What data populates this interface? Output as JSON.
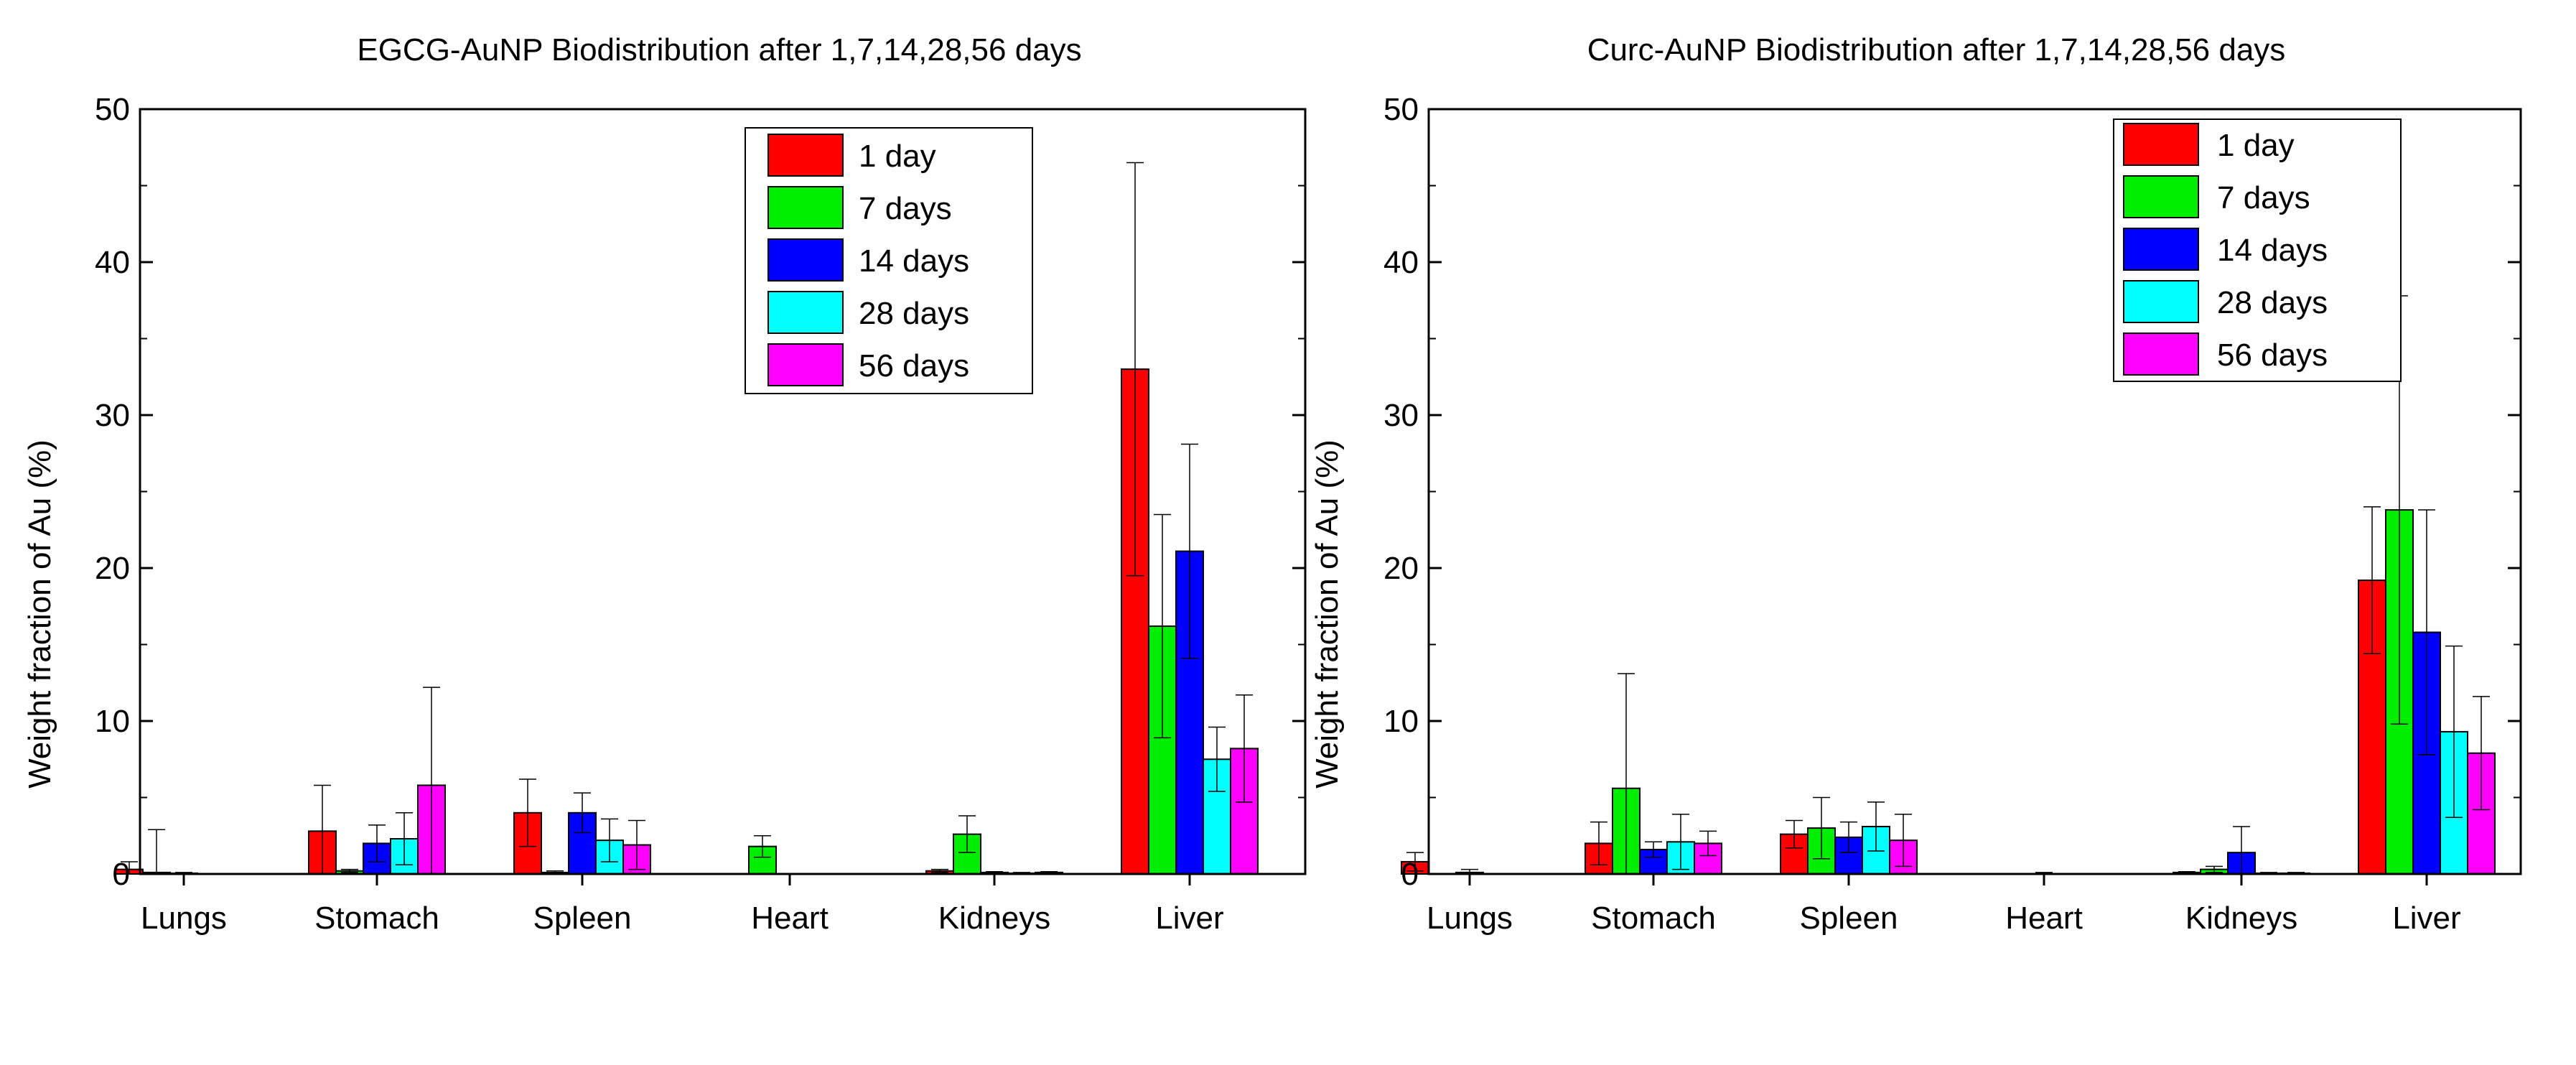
{
  "chart_data": [
    {
      "type": "bar",
      "title": "EGCG-AuNP Biodistribution after 1,7,14,28,56 days",
      "xlabel": "",
      "ylabel": "Weight fraction of Au (%)",
      "ylim": [
        0,
        50
      ],
      "yticks": [
        0,
        10,
        20,
        30,
        40,
        50
      ],
      "categories": [
        "Lungs",
        "Stomach",
        "Spleen",
        "Heart",
        "Kidneys",
        "Liver"
      ],
      "legend_position": "top-right",
      "series": [
        {
          "name": "1 day",
          "color": "#ff0000",
          "values": [
            0.3,
            2.8,
            4.0,
            0.0,
            0.2,
            33.0
          ],
          "errors": [
            0.5,
            3.0,
            2.2,
            0.0,
            0.1,
            13.5
          ]
        },
        {
          "name": "7 days",
          "color": "#00ee00",
          "values": [
            0.1,
            0.2,
            0.1,
            1.8,
            2.6,
            16.2
          ],
          "errors": [
            2.8,
            0.1,
            0.1,
            0.7,
            1.2,
            7.3
          ]
        },
        {
          "name": "14 days",
          "color": "#0000ff",
          "values": [
            0.05,
            2.0,
            4.0,
            0.0,
            0.1,
            21.1
          ],
          "errors": [
            0.05,
            1.2,
            1.3,
            0.0,
            0.05,
            7.0
          ]
        },
        {
          "name": "28 days",
          "color": "#00ffff",
          "values": [
            0.0,
            2.3,
            2.2,
            0.0,
            0.05,
            7.5
          ],
          "errors": [
            0.0,
            1.7,
            1.4,
            0.0,
            0.05,
            2.1
          ]
        },
        {
          "name": "56 days",
          "color": "#ff00ff",
          "values": [
            0.0,
            5.8,
            1.9,
            0.0,
            0.1,
            8.2
          ],
          "errors": [
            0.0,
            6.4,
            1.6,
            0.0,
            0.05,
            3.5
          ]
        }
      ]
    },
    {
      "type": "bar",
      "title": "Curc-AuNP Biodistribution after 1,7,14,28,56 days",
      "xlabel": "",
      "ylabel": "Weight fraction of Au (%)",
      "ylim": [
        0,
        50
      ],
      "yticks": [
        0,
        10,
        20,
        30,
        40,
        50
      ],
      "categories": [
        "Lungs",
        "Stomach",
        "Spleen",
        "Heart",
        "Kidneys",
        "Liver"
      ],
      "legend_position": "top-right",
      "series": [
        {
          "name": "1 day",
          "color": "#ff0000",
          "values": [
            0.8,
            2.0,
            2.6,
            0.0,
            0.1,
            19.2
          ],
          "errors": [
            0.6,
            1.4,
            0.9,
            0.0,
            0.05,
            4.8
          ]
        },
        {
          "name": "7 days",
          "color": "#00ee00",
          "values": [
            0.0,
            5.6,
            3.0,
            0.0,
            0.3,
            23.8
          ],
          "errors": [
            0.0,
            7.5,
            2.0,
            0.0,
            0.2,
            14.0
          ]
        },
        {
          "name": "14 days",
          "color": "#0000ff",
          "values": [
            0.1,
            1.6,
            2.4,
            0.0,
            1.4,
            15.8
          ],
          "errors": [
            0.2,
            0.5,
            1.0,
            0.1,
            1.7,
            8.0
          ]
        },
        {
          "name": "28 days",
          "color": "#00ffff",
          "values": [
            0.0,
            2.1,
            3.1,
            0.0,
            0.05,
            9.3
          ],
          "errors": [
            0.0,
            1.8,
            1.6,
            0.0,
            0.05,
            5.6
          ]
        },
        {
          "name": "56 days",
          "color": "#ff00ff",
          "values": [
            0.0,
            2.0,
            2.2,
            0.0,
            0.05,
            7.9
          ],
          "errors": [
            0.0,
            0.8,
            1.7,
            0.0,
            0.05,
            3.7
          ]
        }
      ]
    }
  ]
}
